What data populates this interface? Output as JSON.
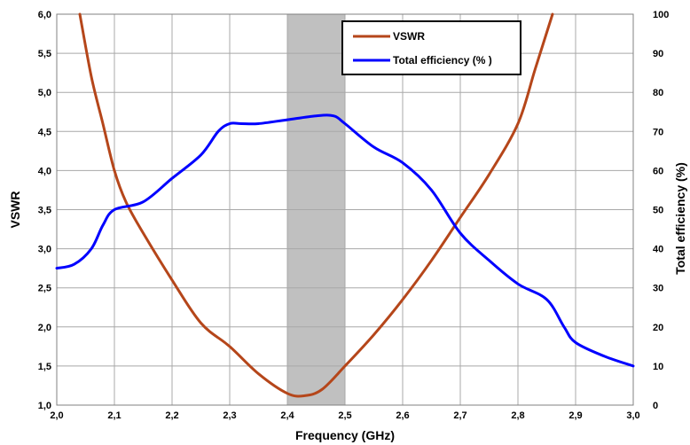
{
  "chart_data": {
    "type": "line",
    "xlabel": "Frequency (GHz)",
    "ylabel_left": "VSWR",
    "ylabel_right": "Total efficiency (%)",
    "xlim": [
      2.0,
      3.0
    ],
    "ylim_left": [
      1.0,
      6.0
    ],
    "ylim_right": [
      0,
      100
    ],
    "xticks": [
      "2,0",
      "2,1",
      "2,2",
      "2,3",
      "2,4",
      "2,5",
      "2,6",
      "2,7",
      "2,8",
      "2,9",
      "3,0"
    ],
    "yticks_left": [
      "1,0",
      "1,5",
      "2,0",
      "2,5",
      "3,0",
      "3,5",
      "4,0",
      "4,5",
      "5,0",
      "5,5",
      "6,0"
    ],
    "yticks_right": [
      "0",
      "10",
      "20",
      "30",
      "40",
      "50",
      "60",
      "70",
      "80",
      "90",
      "100"
    ],
    "grid": true,
    "legend_position": "top-right",
    "highlight_band": {
      "x": [
        2.4,
        2.5
      ],
      "color": "#c0c0c0"
    },
    "series": [
      {
        "name": "VSWR",
        "axis": "left",
        "color": "#b5461a",
        "x": [
          2.04,
          2.06,
          2.08,
          2.1,
          2.12,
          2.15,
          2.2,
          2.25,
          2.3,
          2.35,
          2.4,
          2.43,
          2.46,
          2.5,
          2.55,
          2.6,
          2.65,
          2.7,
          2.75,
          2.8,
          2.83,
          2.86
        ],
        "y": [
          6.0,
          5.2,
          4.6,
          4.0,
          3.6,
          3.2,
          2.6,
          2.05,
          1.75,
          1.4,
          1.15,
          1.12,
          1.2,
          1.5,
          1.9,
          2.35,
          2.85,
          3.4,
          3.95,
          4.6,
          5.3,
          6.0
        ]
      },
      {
        "name": "Total efficiency (% )",
        "axis": "right",
        "color": "#0000ff",
        "x": [
          2.0,
          2.03,
          2.06,
          2.08,
          2.1,
          2.15,
          2.2,
          2.25,
          2.28,
          2.3,
          2.32,
          2.35,
          2.4,
          2.45,
          2.48,
          2.5,
          2.55,
          2.6,
          2.65,
          2.7,
          2.75,
          2.8,
          2.85,
          2.88,
          2.9,
          2.95,
          3.0
        ],
        "y": [
          35,
          36,
          40,
          46,
          50,
          52,
          58,
          64,
          70,
          72,
          72,
          72,
          73,
          74,
          74,
          72,
          66,
          62,
          55,
          44,
          37,
          31,
          27,
          20,
          16,
          12.5,
          10
        ]
      }
    ]
  }
}
